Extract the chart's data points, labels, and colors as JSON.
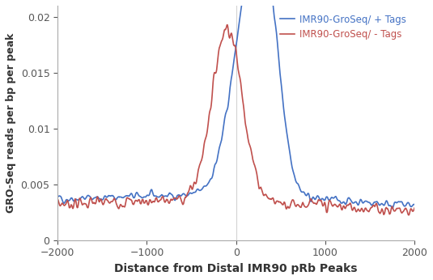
{
  "title": "",
  "xlabel": "Distance from Distal IMR90 pRb Peaks",
  "ylabel": "GRO-Seq reads per bp per peak",
  "xlim": [
    -2000,
    2000
  ],
  "ylim": [
    0,
    0.021
  ],
  "yticks": [
    0,
    0.005,
    0.01,
    0.015,
    0.02
  ],
  "xticks": [
    -2000,
    -1000,
    0,
    1000,
    2000
  ],
  "blue_color": "#4472C4",
  "red_color": "#C0504D",
  "blue_label": "IMR90-GroSeq/ + Tags",
  "red_label": "IMR90-GroSeq/ - Tags",
  "line_width": 1.2,
  "baseline": 0.003,
  "noise_amplitude": 0.0005
}
